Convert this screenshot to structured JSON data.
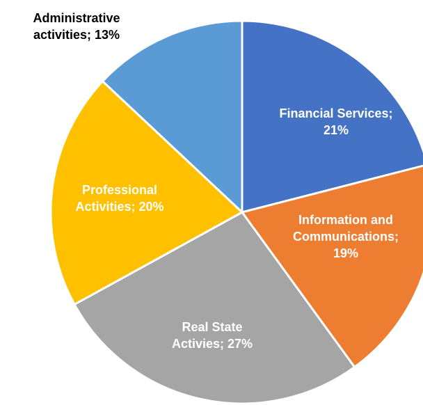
{
  "chart_data": {
    "type": "pie",
    "labels": [
      "Financial Services; 21%",
      "Information and Communications; 19%",
      "Real State Activies; 27%",
      "Professional Activities; 20%",
      "Administrative activities; 13%"
    ],
    "values": [
      21,
      19,
      27,
      20,
      13
    ],
    "colors": [
      "#4472c4",
      "#ed7d31",
      "#a5a5a5",
      "#ffc000",
      "#5b9bd5"
    ]
  }
}
